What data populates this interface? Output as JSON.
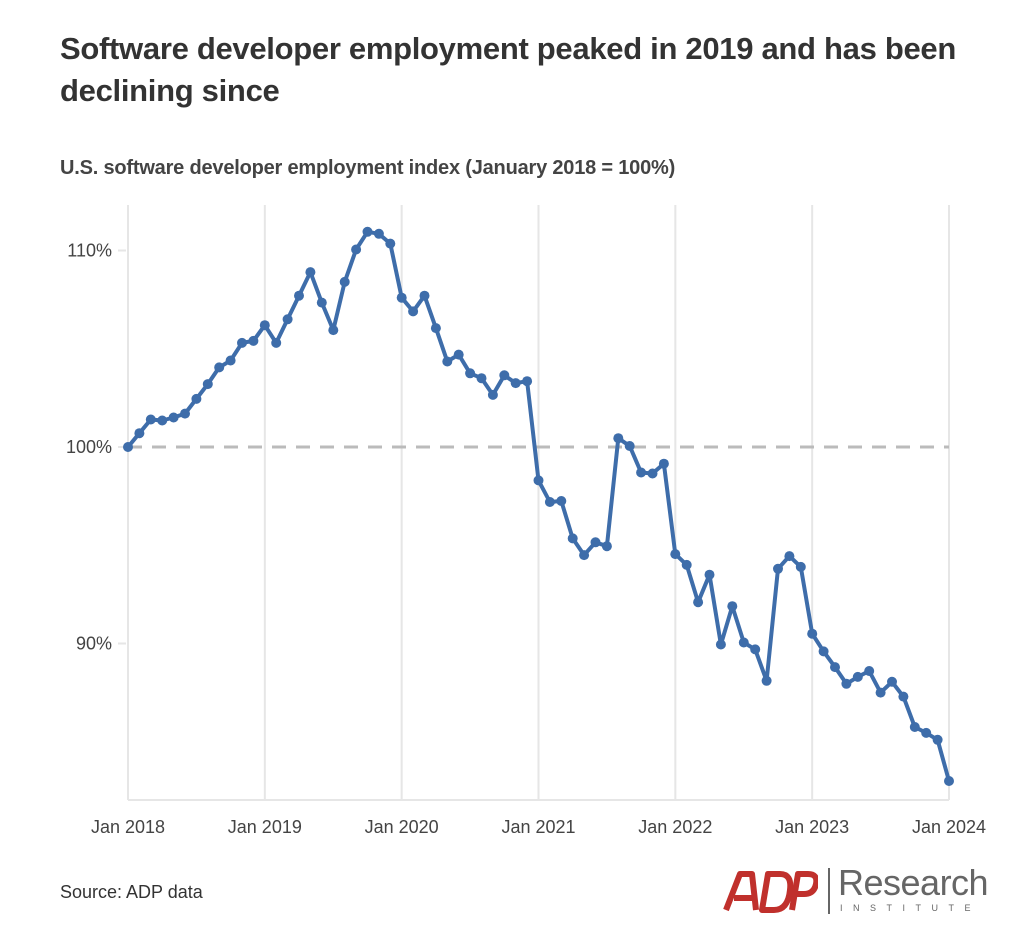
{
  "header": {
    "title": "Software developer employment peaked in 2019 and has been declining since",
    "subtitle": "U.S. software developer employment index (January 2018 = 100%)"
  },
  "footer": {
    "source": "Source: ADP data",
    "logo_mark": "ADP",
    "logo_text": "Research",
    "logo_subtext": "INSTITUTE"
  },
  "colors": {
    "line": "#3e6daa",
    "reference_line": "#bbbbbb",
    "grid": "#e6e6e6",
    "logo_red": "#c0302c",
    "logo_gray": "#666666"
  },
  "chart_data": {
    "type": "line",
    "title": "Software developer employment peaked in 2019 and has been declining since",
    "subtitle": "U.S. software developer employment index (January 2018 = 100%)",
    "xlabel": "",
    "ylabel": "",
    "x_start": "2018-01",
    "x_frequency": "monthly",
    "x_ticks": [
      "Jan 2018",
      "Jan 2019",
      "Jan 2020",
      "Jan 2021",
      "Jan 2022",
      "Jan 2023",
      "Jan 2024"
    ],
    "y_ticks": [
      90,
      100,
      110
    ],
    "y_tick_labels": [
      "90%",
      "100%",
      "110%"
    ],
    "ylim": [
      82.5,
      112
    ],
    "reference_line": {
      "value": 100,
      "style": "dashed"
    },
    "grid": "vertical",
    "legend": "none",
    "series": [
      {
        "name": "Software developer employment index",
        "values": [
          100.0,
          100.7,
          101.4,
          101.35,
          101.5,
          101.7,
          102.45,
          103.2,
          104.05,
          104.4,
          105.3,
          105.4,
          106.2,
          105.3,
          106.5,
          107.7,
          108.9,
          107.35,
          105.95,
          108.4,
          110.05,
          110.95,
          110.85,
          110.35,
          107.6,
          106.9,
          107.7,
          106.05,
          104.35,
          104.7,
          103.75,
          103.5,
          102.65,
          103.65,
          103.25,
          103.35,
          98.3,
          97.2,
          97.25,
          95.35,
          94.5,
          95.15,
          94.95,
          100.45,
          100.05,
          98.7,
          98.65,
          99.15,
          94.55,
          94.0,
          92.1,
          93.5,
          89.95,
          91.9,
          90.05,
          89.7,
          88.1,
          93.8,
          94.45,
          93.9,
          90.5,
          89.6,
          88.8,
          87.95,
          88.3,
          88.6,
          87.5,
          88.05,
          87.3,
          85.75,
          85.45,
          85.1,
          83.0
        ]
      }
    ],
    "source": "Source: ADP data"
  }
}
